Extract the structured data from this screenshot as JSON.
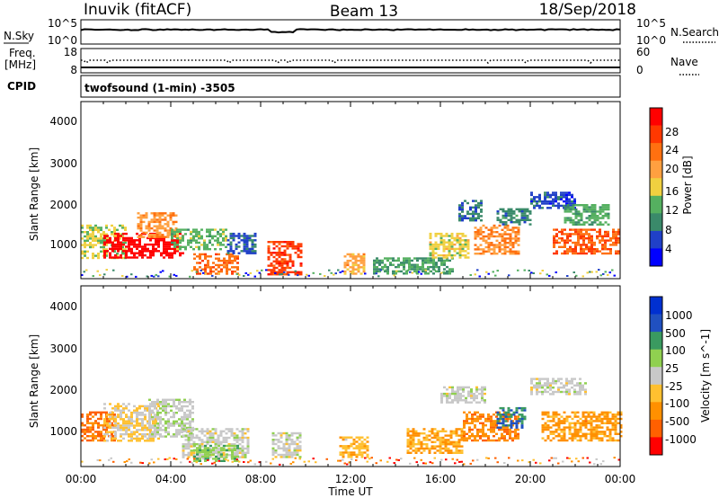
{
  "header": {
    "station": "Inuvik (fitACF)",
    "beam": "Beam 13",
    "date": "18/Sep/2018"
  },
  "noise_panel": {
    "left_label": "N.Sky",
    "left_ticks": [
      "10^5",
      "10^0"
    ],
    "right_ticks": [
      "10^5",
      "10^0"
    ],
    "right_label": "N.Search"
  },
  "freq_panel": {
    "left_label_line1": "Freq.",
    "left_label_line2": "[MHz]",
    "left_ticks": [
      "18",
      "8"
    ],
    "right_ticks": [
      "60",
      "0"
    ],
    "right_label": "Nave"
  },
  "cpid_panel": {
    "label": "CPID",
    "text": "twofsound (1-min) -3505"
  },
  "axes": {
    "ylabel": "Slant Range [km]",
    "yticks": [
      "4000",
      "3000",
      "2000",
      "1000"
    ],
    "xticks": [
      "00:00",
      "04:00",
      "08:00",
      "12:00",
      "16:00",
      "20:00",
      "00:00"
    ],
    "xlabel": "Time UT"
  },
  "colors": {
    "power_scale": [
      "#0000ff",
      "#2040c8",
      "#3a8a6a",
      "#55b060",
      "#f0d040",
      "#ffa040",
      "#ff7010",
      "#ff3800",
      "#ff0000"
    ],
    "velocity_scale": [
      "#ff0000",
      "#ff6000",
      "#ff9000",
      "#ffc030",
      "#c8c8c8",
      "#90d050",
      "#3a9a60",
      "#2050c0",
      "#0030d0"
    ]
  },
  "chart_data": [
    {
      "type": "heatmap",
      "title": "",
      "xlabel": "",
      "ylabel": "Slant Range [km]",
      "xlim_hours": [
        0,
        24
      ],
      "ylim_km": [
        180,
        4500
      ],
      "colorbar": {
        "label": "Power [dB]",
        "ticks": [
          "28",
          "24",
          "20",
          "16",
          "12",
          "8",
          "4"
        ],
        "range": [
          0,
          30
        ]
      },
      "regions": [
        {
          "t0": 0.0,
          "t1": 2.0,
          "r0": 700,
          "r1": 1500,
          "level": 14
        },
        {
          "t0": 1.0,
          "t1": 4.5,
          "r0": 700,
          "r1": 1300,
          "level": 29
        },
        {
          "t0": 2.5,
          "t1": 4.2,
          "r0": 1200,
          "r1": 1800,
          "level": 19
        },
        {
          "t0": 4.0,
          "t1": 6.5,
          "r0": 900,
          "r1": 1400,
          "level": 12
        },
        {
          "t0": 5.0,
          "t1": 7.0,
          "r0": 300,
          "r1": 800,
          "level": 22
        },
        {
          "t0": 6.5,
          "t1": 7.8,
          "r0": 800,
          "r1": 1300,
          "level": 6
        },
        {
          "t0": 8.3,
          "t1": 9.8,
          "r0": 300,
          "r1": 1100,
          "level": 25
        },
        {
          "t0": 11.7,
          "t1": 12.6,
          "r0": 300,
          "r1": 800,
          "level": 18
        },
        {
          "t0": 13.0,
          "t1": 16.5,
          "r0": 300,
          "r1": 700,
          "level": 10
        },
        {
          "t0": 15.5,
          "t1": 17.3,
          "r0": 700,
          "r1": 1300,
          "level": 15
        },
        {
          "t0": 16.8,
          "t1": 17.8,
          "r0": 1600,
          "r1": 2100,
          "level": 7
        },
        {
          "t0": 17.5,
          "t1": 19.5,
          "r0": 800,
          "r1": 1500,
          "level": 20
        },
        {
          "t0": 18.5,
          "t1": 20.0,
          "r0": 1500,
          "r1": 1900,
          "level": 8
        },
        {
          "t0": 20.0,
          "t1": 22.0,
          "r0": 1900,
          "r1": 2300,
          "level": 5
        },
        {
          "t0": 21.0,
          "t1": 24.0,
          "r0": 800,
          "r1": 1400,
          "level": 23
        },
        {
          "t0": 21.5,
          "t1": 23.5,
          "r0": 1500,
          "r1": 2000,
          "level": 11
        }
      ]
    },
    {
      "type": "heatmap",
      "title": "",
      "xlabel": "Time UT",
      "ylabel": "Slant Range [km]",
      "xlim_hours": [
        0,
        24
      ],
      "ylim_km": [
        180,
        4500
      ],
      "colorbar": {
        "label": "Velocity [m s^-1]",
        "ticks": [
          "1000",
          "500",
          "100",
          "25",
          "-25",
          "-100",
          "-500",
          "-1000"
        ],
        "range": [
          -1200,
          1200
        ]
      },
      "regions": [
        {
          "t0": 0.0,
          "t1": 1.5,
          "r0": 800,
          "r1": 1500,
          "level": -700
        },
        {
          "t0": 1.0,
          "t1": 3.5,
          "r0": 800,
          "r1": 1700,
          "level": -150
        },
        {
          "t0": 3.0,
          "t1": 5.0,
          "r0": 900,
          "r1": 1800,
          "level": 60
        },
        {
          "t0": 4.5,
          "t1": 7.5,
          "r0": 400,
          "r1": 1100,
          "level": 0
        },
        {
          "t0": 5.0,
          "t1": 7.0,
          "r0": 300,
          "r1": 700,
          "level": 300
        },
        {
          "t0": 8.5,
          "t1": 9.8,
          "r0": 400,
          "r1": 1000,
          "level": 0
        },
        {
          "t0": 11.5,
          "t1": 12.8,
          "r0": 400,
          "r1": 900,
          "level": -300
        },
        {
          "t0": 14.5,
          "t1": 17.0,
          "r0": 500,
          "r1": 1100,
          "level": -400
        },
        {
          "t0": 16.0,
          "t1": 18.0,
          "r0": 1700,
          "r1": 2100,
          "level": 10
        },
        {
          "t0": 17.0,
          "t1": 19.5,
          "r0": 800,
          "r1": 1500,
          "level": -600
        },
        {
          "t0": 18.5,
          "t1": 19.8,
          "r0": 1100,
          "r1": 1600,
          "level": 700
        },
        {
          "t0": 20.0,
          "t1": 22.5,
          "r0": 1900,
          "r1": 2300,
          "level": 10
        },
        {
          "t0": 20.5,
          "t1": 24.0,
          "r0": 800,
          "r1": 1500,
          "level": -500
        }
      ]
    }
  ]
}
